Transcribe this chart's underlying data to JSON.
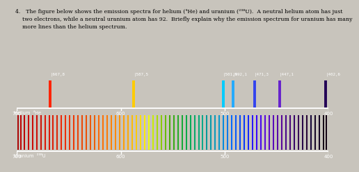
{
  "bg_color": "#000000",
  "fig_bg": "#c8c4bc",
  "wavelength_min": 400,
  "wavelength_max": 700,
  "axis_ticks": [
    700,
    600,
    500,
    400
  ],
  "helium_lines": [
    {
      "wl": 667.8,
      "color": "#ff2200",
      "label": "667,8"
    },
    {
      "wl": 587.5,
      "color": "#ffcc00",
      "label": "587,5"
    },
    {
      "wl": 501.5,
      "color": "#00ccff",
      "label": "501,5"
    },
    {
      "wl": 492.1,
      "color": "#22aaff",
      "label": "492,1"
    },
    {
      "wl": 471.3,
      "color": "#3344ee",
      "label": "471,3"
    },
    {
      "wl": 447.1,
      "color": "#6622cc",
      "label": "447,1"
    },
    {
      "wl": 402.6,
      "color": "#220055",
      "label": "402,6"
    }
  ],
  "uranium_lines": [
    {
      "wl": 699,
      "color": "#aa0000"
    },
    {
      "wl": 696,
      "color": "#bb0000"
    },
    {
      "wl": 693,
      "color": "#bb0000"
    },
    {
      "wl": 689,
      "color": "#cc0000"
    },
    {
      "wl": 685,
      "color": "#cc0500"
    },
    {
      "wl": 681,
      "color": "#cc0800"
    },
    {
      "wl": 677,
      "color": "#cc1000"
    },
    {
      "wl": 673,
      "color": "#dd1200"
    },
    {
      "wl": 669,
      "color": "#dd1500"
    },
    {
      "wl": 665,
      "color": "#dd1800"
    },
    {
      "wl": 661,
      "color": "#dd2000"
    },
    {
      "wl": 657,
      "color": "#ee2200"
    },
    {
      "wl": 653,
      "color": "#ee2800"
    },
    {
      "wl": 649,
      "color": "#ee3000"
    },
    {
      "wl": 645,
      "color": "#ee3500"
    },
    {
      "wl": 641,
      "color": "#ee3e00"
    },
    {
      "wl": 637,
      "color": "#ee4500"
    },
    {
      "wl": 633,
      "color": "#ee4e00"
    },
    {
      "wl": 629,
      "color": "#ee5500"
    },
    {
      "wl": 625,
      "color": "#ee5d00"
    },
    {
      "wl": 621,
      "color": "#ff6600"
    },
    {
      "wl": 617,
      "color": "#ff6e00"
    },
    {
      "wl": 613,
      "color": "#ff7700"
    },
    {
      "wl": 609,
      "color": "#ff8000"
    },
    {
      "wl": 605,
      "color": "#ff8800"
    },
    {
      "wl": 601,
      "color": "#ff9200"
    },
    {
      "wl": 597,
      "color": "#ff9d00"
    },
    {
      "wl": 593,
      "color": "#ffaa00"
    },
    {
      "wl": 589,
      "color": "#ffbb00"
    },
    {
      "wl": 585,
      "color": "#ffcc00"
    },
    {
      "wl": 581,
      "color": "#ffdd00"
    },
    {
      "wl": 577,
      "color": "#ffee00"
    },
    {
      "wl": 573,
      "color": "#eeff00"
    },
    {
      "wl": 569,
      "color": "#ccee00"
    },
    {
      "wl": 565,
      "color": "#aadd00"
    },
    {
      "wl": 561,
      "color": "#88cc00"
    },
    {
      "wl": 557,
      "color": "#66bb00"
    },
    {
      "wl": 553,
      "color": "#44aa00"
    },
    {
      "wl": 549,
      "color": "#33aa11"
    },
    {
      "wl": 545,
      "color": "#22aa22"
    },
    {
      "wl": 541,
      "color": "#11aa33"
    },
    {
      "wl": 537,
      "color": "#00aa44"
    },
    {
      "wl": 533,
      "color": "#00aa55"
    },
    {
      "wl": 529,
      "color": "#00aa66"
    },
    {
      "wl": 525,
      "color": "#00aa77"
    },
    {
      "wl": 521,
      "color": "#00aa88"
    },
    {
      "wl": 517,
      "color": "#009999"
    },
    {
      "wl": 513,
      "color": "#0099aa"
    },
    {
      "wl": 509,
      "color": "#0099bb"
    },
    {
      "wl": 505,
      "color": "#0099cc"
    },
    {
      "wl": 501,
      "color": "#0088dd"
    },
    {
      "wl": 497,
      "color": "#0077ee"
    },
    {
      "wl": 493,
      "color": "#0066ff"
    },
    {
      "wl": 489,
      "color": "#0055ff"
    },
    {
      "wl": 485,
      "color": "#0044ff"
    },
    {
      "wl": 481,
      "color": "#0033ff"
    },
    {
      "wl": 477,
      "color": "#1122ff"
    },
    {
      "wl": 473,
      "color": "#2211ff"
    },
    {
      "wl": 469,
      "color": "#3300ff"
    },
    {
      "wl": 465,
      "color": "#4400ee"
    },
    {
      "wl": 461,
      "color": "#5500dd"
    },
    {
      "wl": 457,
      "color": "#5500cc"
    },
    {
      "wl": 453,
      "color": "#5500bb"
    },
    {
      "wl": 449,
      "color": "#5500aa"
    },
    {
      "wl": 445,
      "color": "#550099"
    },
    {
      "wl": 441,
      "color": "#440088"
    },
    {
      "wl": 437,
      "color": "#440077"
    },
    {
      "wl": 433,
      "color": "#330066"
    },
    {
      "wl": 429,
      "color": "#330055"
    },
    {
      "wl": 425,
      "color": "#220044"
    },
    {
      "wl": 421,
      "color": "#220033"
    },
    {
      "wl": 417,
      "color": "#110033"
    },
    {
      "wl": 413,
      "color": "#110022"
    },
    {
      "wl": 409,
      "color": "#110022"
    },
    {
      "wl": 405,
      "color": "#110011"
    },
    {
      "wl": 402,
      "color": "#110011"
    }
  ]
}
